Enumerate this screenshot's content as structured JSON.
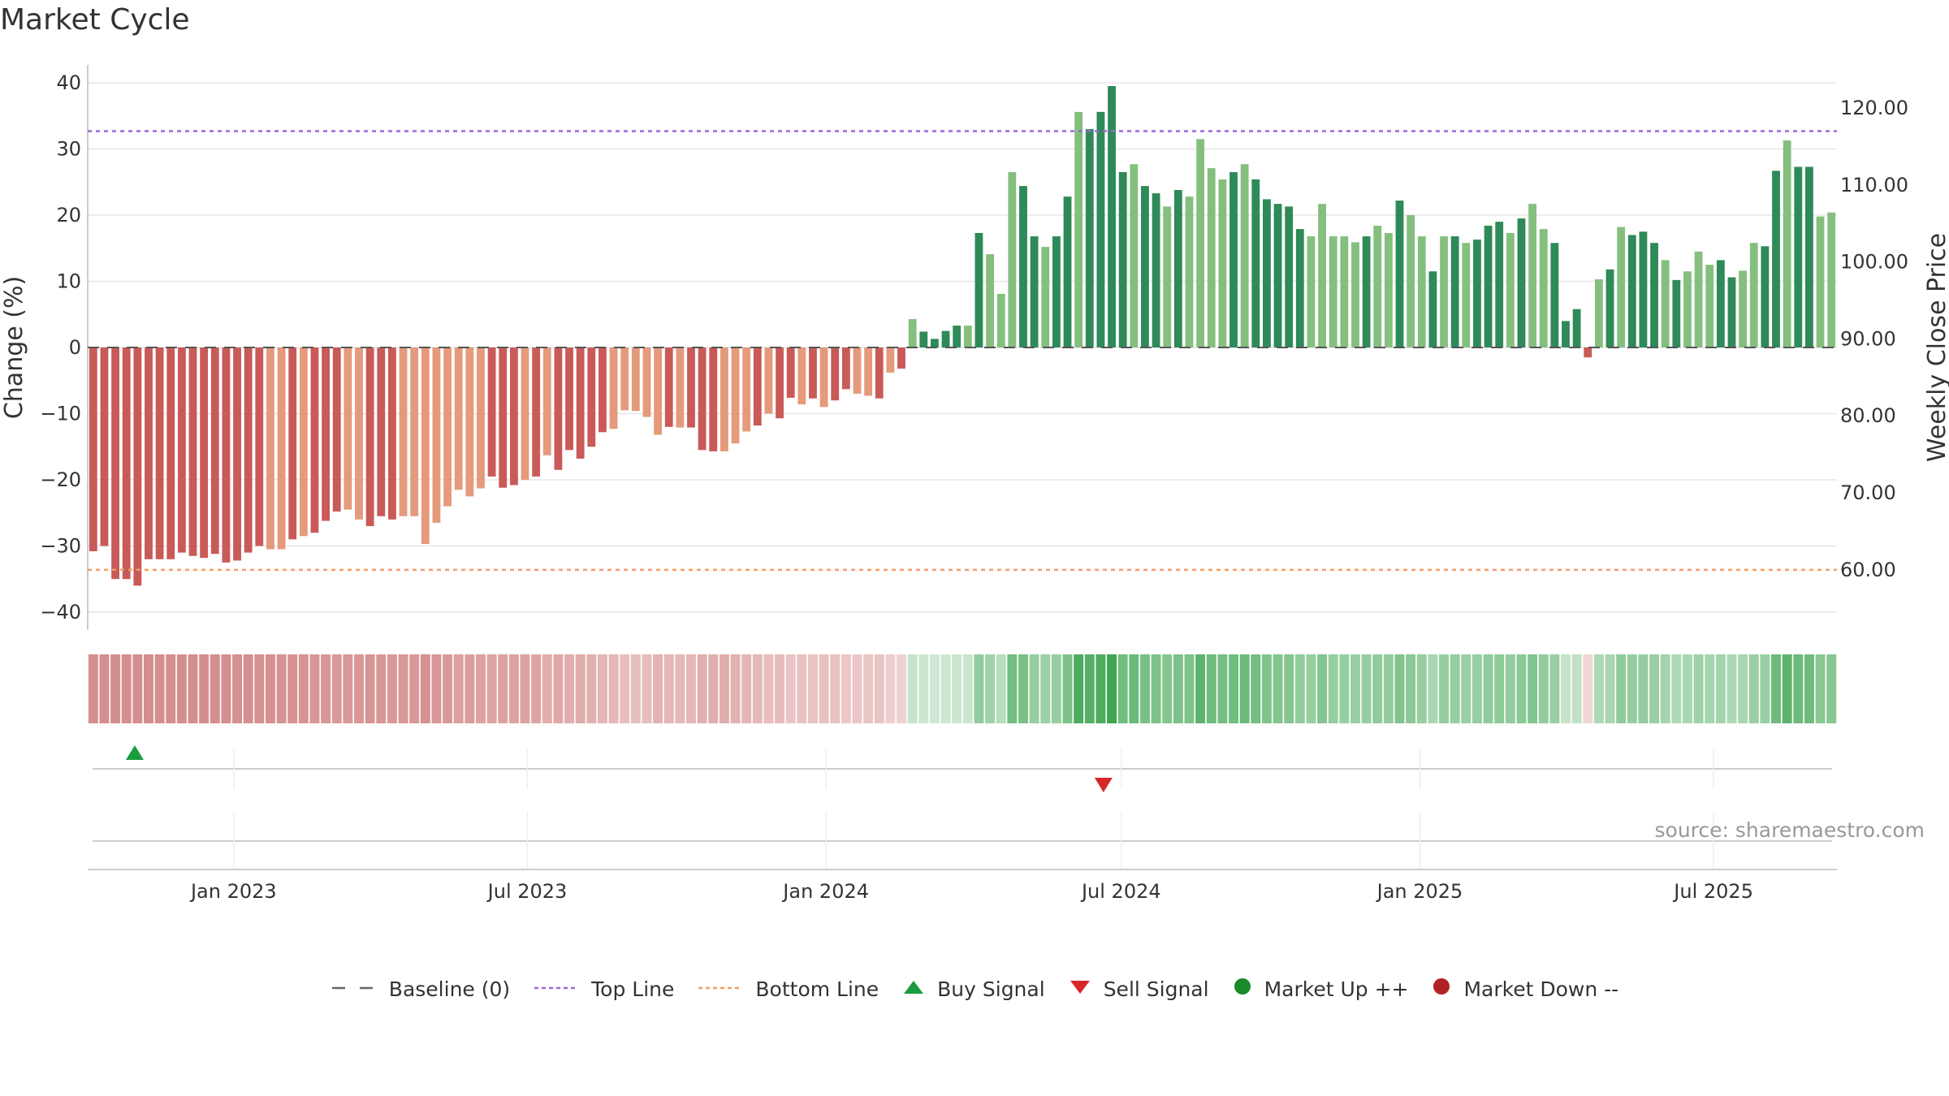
{
  "title": "Market Cycle",
  "source_label": "source: sharemaestro.com",
  "colors": {
    "neg_dark": "#c95a58",
    "neg_light": "#e59a7b",
    "pos_dark": "#2e8a58",
    "pos_light": "#84bf7e",
    "top_line": "#a066d3",
    "bottom_line": "#ee9f64",
    "buy": "#1a9c3e",
    "sell": "#d62728",
    "market_up": "#1a8a2a",
    "market_down": "#b22222"
  },
  "legend": [
    {
      "key": "baseline",
      "label": "Baseline (0)",
      "icon": "dash-line-icon"
    },
    {
      "key": "top",
      "label": "Top Line",
      "icon": "dotted-line-icon"
    },
    {
      "key": "bottom",
      "label": "Bottom Line",
      "icon": "dotted-line-icon"
    },
    {
      "key": "buy",
      "label": "Buy Signal",
      "icon": "triangle-up-icon"
    },
    {
      "key": "sell",
      "label": "Sell Signal",
      "icon": "triangle-down-icon"
    },
    {
      "key": "up",
      "label": "Market Up ++",
      "icon": "circle-icon"
    },
    {
      "key": "down",
      "label": "Market Down --",
      "icon": "circle-icon"
    }
  ],
  "chart_data": {
    "type": "bar",
    "title": "Market Cycle",
    "ylabel_left": "Change (%)",
    "ylabel_right": "Weekly Close Price",
    "ylim_left": [
      -42.5,
      42.5
    ],
    "yticks_left": [
      -40,
      -30,
      -20,
      -10,
      0,
      10,
      20,
      30,
      40
    ],
    "yticks_right": [
      "60.00",
      "70.00",
      "80.00",
      "90.00",
      "100.00",
      "110.00",
      "120.00"
    ],
    "right_tick_values": [
      60,
      70,
      80,
      90,
      100,
      110,
      120
    ],
    "right_axis_map": {
      "left": [
        -33.6,
        32.7
      ],
      "right": [
        60,
        117
      ]
    },
    "top_line": 32.7,
    "bottom_line": -33.6,
    "baseline": 0,
    "x_start": "2022-10-03",
    "x_end": "2025-09-15",
    "xticks": [
      {
        "date": "2023-01-01",
        "label": "Jan 2023"
      },
      {
        "date": "2023-07-01",
        "label": "Jul 2023"
      },
      {
        "date": "2024-01-01",
        "label": "Jan 2024"
      },
      {
        "date": "2024-07-01",
        "label": "Jul 2024"
      },
      {
        "date": "2025-01-01",
        "label": "Jan 2025"
      },
      {
        "date": "2025-07-01",
        "label": "Jul 2025"
      }
    ],
    "values": [
      -30.8,
      -30,
      -35,
      -35,
      -36,
      -32,
      -32,
      -32,
      -31,
      -31.5,
      -31.8,
      -31.2,
      -32.5,
      -32.2,
      -31,
      -30,
      -30.5,
      -30.5,
      -29,
      -28.5,
      -28,
      -26.2,
      -24.8,
      -24.5,
      -26,
      -27,
      -25.5,
      -26,
      -25.5,
      -25.5,
      -29.7,
      -26.5,
      -24,
      -21.5,
      -22.5,
      -21.3,
      -19.5,
      -21.2,
      -20.8,
      -20,
      -19.5,
      -16.3,
      -18.5,
      -15.5,
      -16.8,
      -15,
      -12.8,
      -12.3,
      -9.5,
      -9.6,
      -10.5,
      -13.2,
      -12,
      -12.1,
      -12.1,
      -15.5,
      -15.7,
      -15.7,
      -14.5,
      -12.7,
      -11.8,
      -10,
      -10.7,
      -7.6,
      -8.6,
      -7.7,
      -9,
      -8,
      -6.3,
      -7,
      -7.3,
      -7.7,
      -3.8,
      -3.2,
      4.3,
      2.4,
      1.3,
      2.5,
      3.3,
      3.3,
      17.3,
      14.1,
      8.1,
      26.5,
      24.4,
      16.8,
      15.2,
      16.8,
      22.8,
      35.6,
      33,
      35.6,
      39.5,
      26.5,
      27.7,
      24.4,
      23.3,
      21.3,
      23.8,
      22.8,
      31.5,
      27.1,
      25.4,
      26.5,
      27.7,
      25.4,
      22.4,
      21.7,
      21.3,
      17.9,
      16.8,
      21.7,
      16.8,
      16.8,
      15.9,
      16.8,
      18.4,
      17.3,
      22.2,
      20,
      16.8,
      11.5,
      16.8,
      16.8,
      15.8,
      16.3,
      18.4,
      19,
      17.3,
      19.5,
      21.7,
      17.9,
      15.8,
      4,
      5.8,
      -1.5,
      10.3,
      11.8,
      18.2,
      17,
      17.5,
      15.8,
      13.2,
      10.2,
      11.5,
      14.5,
      12.5,
      13.2,
      10.6,
      11.6,
      15.8,
      15.3,
      26.7,
      31.3,
      27.3,
      27.3,
      19.8,
      20.4
    ],
    "shades": "ddddddddddddddddlldldddlldddlllllllldddldldddddllllldldddllldlddldlddlldldlddddldlllddlddlddddlddldlllldldddddllllldlldlldldldddldllddddldldddldlllddllddlddlldddlldlll",
    "heat_strip": [
      -0.62,
      -0.62,
      -0.62,
      -0.62,
      -0.62,
      -0.62,
      -0.62,
      -0.62,
      -0.62,
      -0.62,
      -0.62,
      -0.62,
      -0.62,
      -0.6,
      -0.6,
      -0.6,
      -0.6,
      -0.58,
      -0.58,
      -0.58,
      -0.56,
      -0.55,
      -0.53,
      -0.53,
      -0.55,
      -0.56,
      -0.55,
      -0.55,
      -0.55,
      -0.55,
      -0.6,
      -0.55,
      -0.52,
      -0.48,
      -0.5,
      -0.47,
      -0.44,
      -0.47,
      -0.46,
      -0.45,
      -0.44,
      -0.38,
      -0.42,
      -0.36,
      -0.39,
      -0.35,
      -0.3,
      -0.29,
      -0.23,
      -0.23,
      -0.25,
      -0.32,
      -0.29,
      -0.29,
      -0.29,
      -0.36,
      -0.37,
      -0.37,
      -0.34,
      -0.3,
      -0.28,
      -0.24,
      -0.26,
      -0.19,
      -0.21,
      -0.19,
      -0.22,
      -0.2,
      -0.16,
      -0.17,
      -0.18,
      -0.19,
      -0.1,
      -0.08,
      0.1,
      0.06,
      0.04,
      0.06,
      0.08,
      0.08,
      0.44,
      0.36,
      0.2,
      0.66,
      0.62,
      0.42,
      0.38,
      0.42,
      0.58,
      0.9,
      0.84,
      0.9,
      1,
      0.66,
      0.7,
      0.62,
      0.59,
      0.54,
      0.6,
      0.58,
      0.8,
      0.68,
      0.64,
      0.66,
      0.7,
      0.64,
      0.56,
      0.55,
      0.54,
      0.45,
      0.42,
      0.55,
      0.42,
      0.42,
      0.4,
      0.42,
      0.46,
      0.44,
      0.56,
      0.5,
      0.42,
      0.29,
      0.42,
      0.42,
      0.4,
      0.41,
      0.46,
      0.48,
      0.44,
      0.49,
      0.55,
      0.45,
      0.4,
      0.1,
      0.14,
      -0.04,
      0.26,
      0.3,
      0.46,
      0.43,
      0.44,
      0.4,
      0.33,
      0.26,
      0.29,
      0.37,
      0.32,
      0.33,
      0.27,
      0.29,
      0.4,
      0.39,
      0.68,
      0.79,
      0.69,
      0.69,
      0.5,
      0.51
    ],
    "buy_signals": [
      {
        "date": "2022-11-01"
      }
    ],
    "sell_signals": [
      {
        "date": "2024-06-20"
      }
    ]
  }
}
